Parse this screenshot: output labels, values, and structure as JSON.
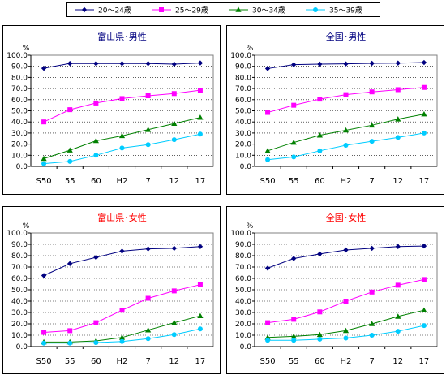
{
  "legend": [
    {
      "label": "20～24歳",
      "color": "#000080",
      "marker": "diamond"
    },
    {
      "label": "25～29歳",
      "color": "#ff00ff",
      "marker": "square"
    },
    {
      "label": "30～34歳",
      "color": "#008000",
      "marker": "triangle"
    },
    {
      "label": "35～39歳",
      "color": "#00ccff",
      "marker": "circle"
    }
  ],
  "chart_data": [
    {
      "type": "line",
      "title": "富山県･男性",
      "title_color": "#000080",
      "ylabel": "%",
      "categories": [
        "S50",
        "55",
        "60",
        "H2",
        "7",
        "12",
        "17"
      ],
      "ylim": [
        0,
        100
      ],
      "yticks": [
        "0.0",
        "10.0",
        "20.0",
        "30.0",
        "40.0",
        "50.0",
        "60.0",
        "70.0",
        "80.0",
        "90.0",
        "100.0"
      ],
      "grid": true,
      "series": [
        {
          "name": "20～24歳",
          "values": [
            88.2,
            92.6,
            92.5,
            92.5,
            92.5,
            92.0,
            93.0
          ]
        },
        {
          "name": "25～29歳",
          "values": [
            40.0,
            51.0,
            57.0,
            61.0,
            63.5,
            65.5,
            68.5
          ]
        },
        {
          "name": "30～34歳",
          "values": [
            7.0,
            14.5,
            23.0,
            27.5,
            33.0,
            38.5,
            44.0
          ]
        },
        {
          "name": "35～39歳",
          "values": [
            2.5,
            4.5,
            10.0,
            16.5,
            19.5,
            24.0,
            29.0
          ]
        }
      ]
    },
    {
      "type": "line",
      "title": "全国･男性",
      "title_color": "#000080",
      "ylabel": "%",
      "categories": [
        "S50",
        "55",
        "60",
        "H2",
        "7",
        "12",
        "17"
      ],
      "ylim": [
        0,
        100
      ],
      "yticks": [
        "0.0",
        "10.0",
        "20.0",
        "30.0",
        "40.0",
        "50.0",
        "60.0",
        "70.0",
        "80.0",
        "90.0",
        "100.0"
      ],
      "grid": true,
      "series": [
        {
          "name": "20～24歳",
          "values": [
            88.0,
            91.5,
            92.0,
            92.2,
            92.7,
            92.9,
            93.4
          ]
        },
        {
          "name": "25～29歳",
          "values": [
            48.5,
            55.0,
            60.5,
            64.5,
            67.0,
            69.0,
            71.0
          ]
        },
        {
          "name": "30～34歳",
          "values": [
            14.0,
            21.5,
            28.0,
            32.5,
            37.0,
            42.5,
            47.0
          ]
        },
        {
          "name": "35～39歳",
          "values": [
            6.0,
            8.5,
            14.0,
            19.0,
            22.5,
            26.0,
            30.0
          ]
        }
      ]
    },
    {
      "type": "line",
      "title": "富山県･女性",
      "title_color": "#ff0000",
      "ylabel": "%",
      "categories": [
        "S50",
        "55",
        "60",
        "H2",
        "7",
        "12",
        "17"
      ],
      "ylim": [
        0,
        100
      ],
      "yticks": [
        "0.0",
        "10.0",
        "20.0",
        "30.0",
        "40.0",
        "50.0",
        "60.0",
        "70.0",
        "80.0",
        "90.0",
        "100.0"
      ],
      "grid": true,
      "series": [
        {
          "name": "20～24歳",
          "values": [
            62.5,
            73.0,
            78.5,
            84.0,
            86.0,
            86.5,
            88.0
          ]
        },
        {
          "name": "25～29歳",
          "values": [
            12.5,
            14.0,
            21.0,
            32.0,
            42.5,
            49.0,
            54.5
          ]
        },
        {
          "name": "30～34歳",
          "values": [
            4.0,
            4.0,
            5.0,
            8.0,
            14.5,
            21.0,
            27.0
          ]
        },
        {
          "name": "35～39歳",
          "values": [
            3.0,
            3.0,
            3.5,
            4.5,
            7.0,
            10.5,
            15.5
          ]
        }
      ]
    },
    {
      "type": "line",
      "title": "全国･女性",
      "title_color": "#ff0000",
      "ylabel": "%",
      "categories": [
        "S50",
        "55",
        "60",
        "H2",
        "7",
        "12",
        "17"
      ],
      "ylim": [
        0,
        100
      ],
      "yticks": [
        "0.0",
        "10.0",
        "20.0",
        "30.0",
        "40.0",
        "50.0",
        "60.0",
        "70.0",
        "80.0",
        "90.0",
        "100.0"
      ],
      "grid": true,
      "series": [
        {
          "name": "20～24歳",
          "values": [
            69.0,
            77.5,
            81.5,
            85.0,
            86.5,
            88.0,
            88.5
          ]
        },
        {
          "name": "25～29歳",
          "values": [
            21.0,
            24.0,
            30.5,
            40.0,
            48.0,
            54.0,
            59.0
          ]
        },
        {
          "name": "30～34歳",
          "values": [
            8.0,
            9.0,
            10.5,
            14.0,
            20.0,
            26.5,
            32.0
          ]
        },
        {
          "name": "35～39歳",
          "values": [
            5.5,
            5.5,
            6.5,
            7.5,
            10.0,
            13.5,
            18.5
          ]
        }
      ]
    }
  ]
}
